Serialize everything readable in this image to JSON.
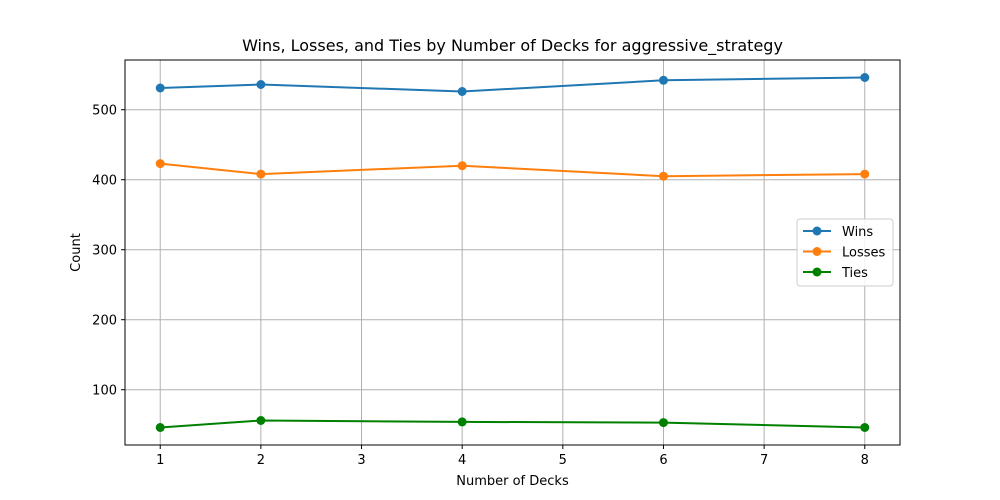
{
  "chart_data": {
    "type": "line",
    "title": "Wins, Losses, and Ties by Number of Decks for aggressive_strategy",
    "xlabel": "Number of Decks",
    "ylabel": "Count",
    "x": [
      1,
      2,
      4,
      6,
      8
    ],
    "xticks": [
      "1",
      "2",
      "3",
      "4",
      "5",
      "6",
      "7",
      "8"
    ],
    "xlim": [
      0.65,
      8.35
    ],
    "yticks": [
      "100",
      "200",
      "300",
      "400",
      "500"
    ],
    "ylim": [
      21,
      571
    ],
    "grid": true,
    "legend_position": "center-right",
    "series": [
      {
        "name": "Wins",
        "color": "#1f77b4",
        "values": [
          531,
          536,
          526,
          542,
          546
        ]
      },
      {
        "name": "Losses",
        "color": "#ff7f0e",
        "values": [
          423,
          408,
          420,
          405,
          408
        ]
      },
      {
        "name": "Ties",
        "color": "#008000",
        "values": [
          46,
          56,
          54,
          53,
          46
        ]
      }
    ]
  }
}
